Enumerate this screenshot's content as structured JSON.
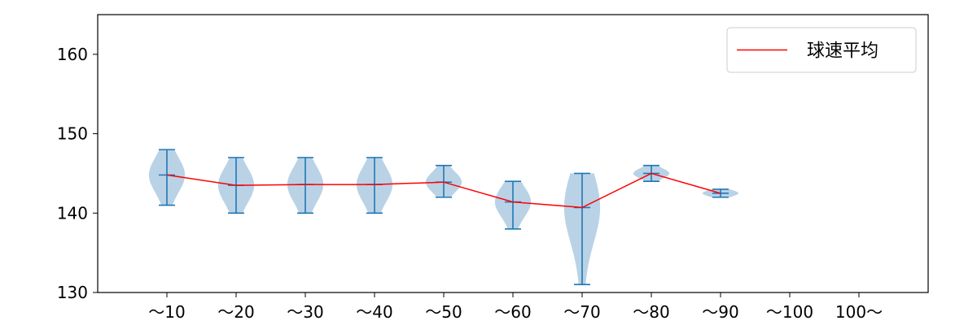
{
  "chart_data": {
    "type": "violin",
    "title": "",
    "xlabel": "",
    "ylabel": "",
    "categories": [
      "～10",
      "～20",
      "～30",
      "～40",
      "～50",
      "～60",
      "～70",
      "～80",
      "～90",
      "～100",
      "100～"
    ],
    "ylim": [
      130,
      165
    ],
    "yticks": [
      "130",
      "140",
      "150",
      "160"
    ],
    "grid": false,
    "legend": {
      "placement": "top-right",
      "entries": [
        "球速平均"
      ]
    },
    "series": [
      {
        "name": "球速平均",
        "values": [
          144.8,
          143.5,
          143.6,
          143.6,
          143.9,
          141.4,
          140.7,
          145.0,
          142.5,
          null,
          null
        ]
      }
    ],
    "distributions": [
      {
        "category": "～10",
        "min": 141,
        "max": 148
      },
      {
        "category": "～20",
        "min": 140,
        "max": 147
      },
      {
        "category": "～30",
        "min": 140,
        "max": 147
      },
      {
        "category": "～40",
        "min": 140,
        "max": 147
      },
      {
        "category": "～50",
        "min": 142,
        "max": 146
      },
      {
        "category": "～60",
        "min": 138,
        "max": 144
      },
      {
        "category": "～70",
        "min": 131,
        "max": 145
      },
      {
        "category": "～80",
        "min": 144,
        "max": 146
      },
      {
        "category": "～90",
        "min": 142,
        "max": 143
      },
      {
        "category": "～100",
        "min": null,
        "max": null
      },
      {
        "category": "100～",
        "min": null,
        "max": null
      }
    ],
    "colors": {
      "violin_fill": "#b9d2e6",
      "violin_line": "#1f77b4",
      "mean_line": "#ff0000",
      "axis": "#000000"
    }
  }
}
